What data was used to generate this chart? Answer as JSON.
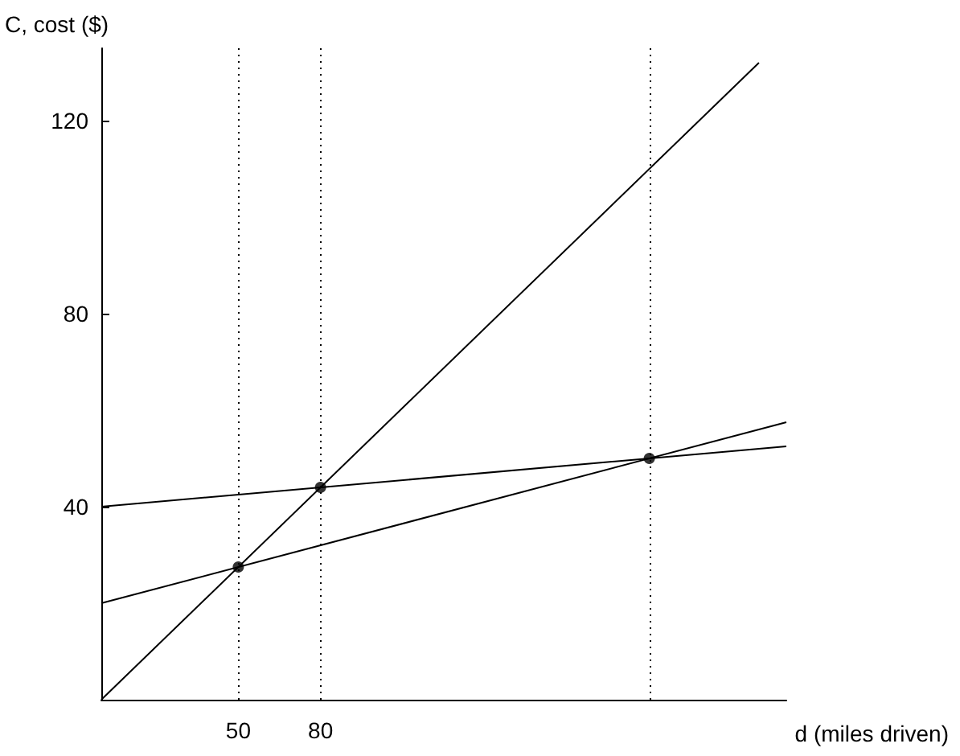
{
  "chart_data": {
    "type": "line",
    "xlabel": "d (miles driven)",
    "ylabel": "C, cost ($)",
    "xlim": [
      0,
      250
    ],
    "ylim": [
      0,
      135
    ],
    "xticks": [
      50,
      80
    ],
    "yticks": [
      40,
      80,
      120
    ],
    "grid": false,
    "line_style": "solid",
    "series": [
      {
        "color": "#000000",
        "x": [
          0,
          240
        ],
        "values": [
          0,
          132
        ],
        "marker": "none"
      },
      {
        "color": "#000000",
        "x": [
          0,
          250
        ],
        "values": [
          40,
          52.5
        ],
        "marker": "none"
      },
      {
        "color": "#000000",
        "x": [
          0,
          250
        ],
        "values": [
          20,
          57.5
        ],
        "marker": "none"
      },
      {
        "type": "scatter",
        "color": "#000000",
        "x": [
          50,
          80,
          200
        ],
        "values": [
          27.5,
          44,
          50
        ],
        "marker": "circle"
      }
    ],
    "ref_lines": [
      {
        "axis": "x",
        "value": 50,
        "color": "#000000",
        "line_style": "dotted"
      },
      {
        "axis": "x",
        "value": 80,
        "color": "#000000",
        "line_style": "dotted"
      },
      {
        "axis": "x",
        "value": 200,
        "color": "#000000",
        "line_style": "dotted"
      }
    ]
  }
}
